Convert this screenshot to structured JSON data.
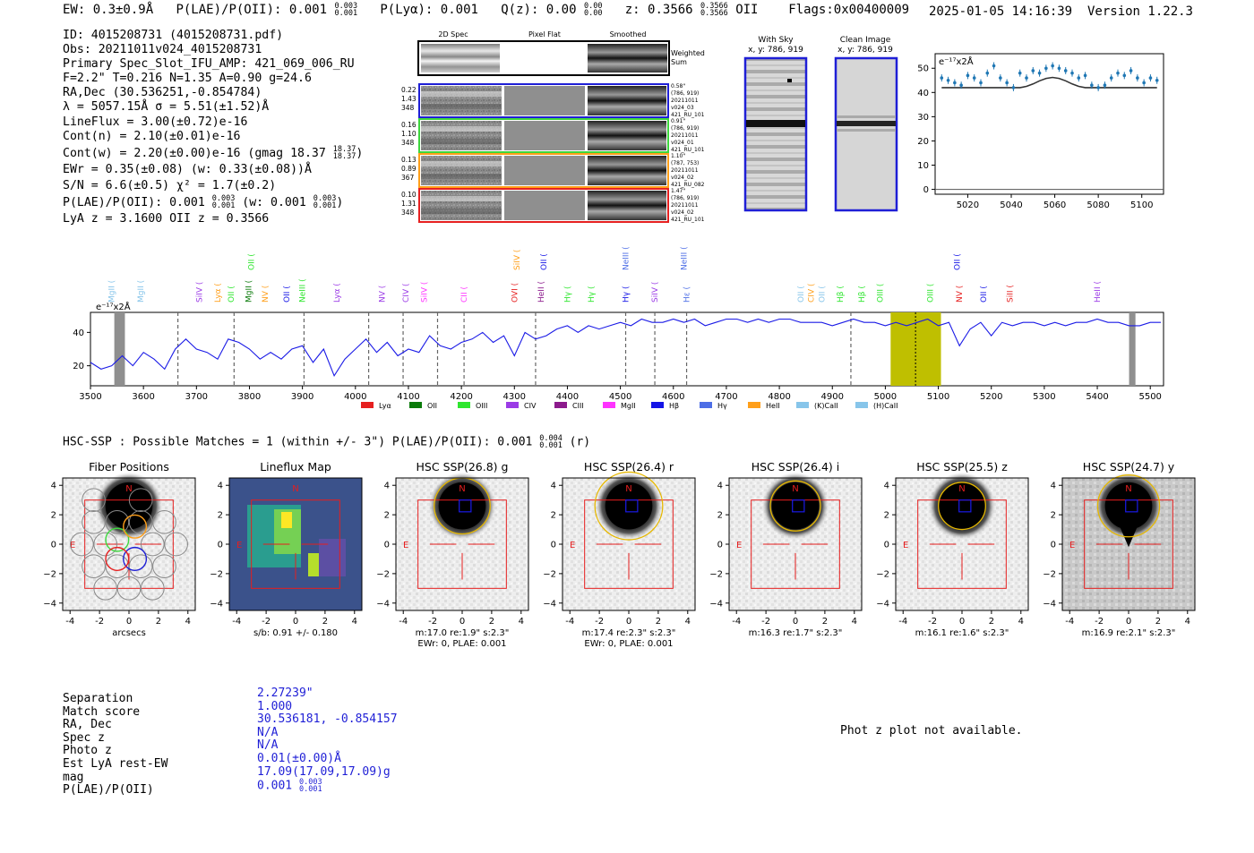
{
  "header": {
    "ew": "EW: 0.3±0.9Å",
    "plae_label": "P(LAE)/P(OII): 0.001",
    "plae_hi": "0.003",
    "plae_lo": "0.001",
    "plya": "P(Lyα): 0.001",
    "qz_label": "Q(z): 0.00",
    "qz_hi": "0.00",
    "qz_lo": "0.00",
    "z_label": "z: 0.3566",
    "z_hi": "0.3566",
    "z_lo": "0.3566",
    "z_line": "OII",
    "flags": "Flags:0x00400009",
    "datetime": "2025-01-05 14:16:39",
    "version": "Version 1.22.3"
  },
  "info": {
    "id": "ID: 4015208731 (4015208731.pdf)",
    "obs": "Obs: 20211011v024_4015208731",
    "primary": "Primary Spec_Slot_IFU_AMP: 421_069_006_RU",
    "fit": "F=2.2\"  T=0.216  N=1.35  A=0.90  g=24.6",
    "radec": "RA,Dec (30.536251,-0.854784)",
    "lambda": "λ = 5057.15Å  σ = 5.51(±1.52)Å",
    "lineflux": "LineFlux = 3.00(±0.72)e-16",
    "contn": "Cont(n) = 2.10(±0.01)e-16",
    "contw": "Cont(w) = 2.20(±0.00)e-16 (gmag 18.37",
    "contw_hi": "18.37",
    "contw_lo": "18.37",
    "ewr": "EWr = 0.35(±0.08) (w: 0.33(±0.08))Å",
    "sn": "S/N = 6.6(±0.5)  χ² = 1.7(±0.2)",
    "plae": "P(LAE)/P(OII): 0.001",
    "plae_hi": "0.003",
    "plae_lo": "0.001",
    "plae_w": "(w: 0.001",
    "plae_w_hi": "0.003",
    "plae_w_lo": "0.001",
    "lyaz": "LyA z = 3.1600  OII z = 0.3566"
  },
  "stamps": {
    "col_2d": "2D Spec",
    "col_flat": "Pixel Flat",
    "col_smooth": "Smoothed",
    "weighted": "Weighted",
    "sum": "Sum",
    "rows": [
      {
        "l1": "0.22",
        "l2": "1.43",
        "l3": "348",
        "r1": "0.58\"",
        "r2": "(786, 919)",
        "r3": "20211011",
        "r4": "v024_03",
        "r5": "421_RU_101",
        "color": "#1f1fd6"
      },
      {
        "l1": "0.16",
        "l2": "1.10",
        "l3": "348",
        "r1": "0.91\"",
        "r2": "(786, 919)",
        "r3": "20211011",
        "r4": "v024_01",
        "r5": "421_RU_101",
        "color": "#3dd63d"
      },
      {
        "l1": "0.13",
        "l2": "0.89",
        "l3": "367",
        "r1": "1.10\"",
        "r2": "(787, 753)",
        "r3": "20211011",
        "r4": "v024_02",
        "r5": "421_RU_082",
        "color": "#ff9f1a"
      },
      {
        "l1": "0.10",
        "l2": "1.31",
        "l3": "348",
        "r1": "1.47\"",
        "r2": "(786, 919)",
        "r3": "20211011",
        "r4": "v024_02",
        "r5": "421_RU_101",
        "color": "#e62020"
      }
    ],
    "with_sky": "With Sky",
    "with_sky_xy": "x, y: 786, 919",
    "clean": "Clean Image",
    "clean_xy": "x, y: 786, 919"
  },
  "zoom_chart": {
    "ylabel": "e⁻¹⁷x2Å",
    "xticks": [
      5020,
      5040,
      5060,
      5080,
      5100
    ],
    "yticks": [
      0,
      10,
      20,
      30,
      40,
      50
    ]
  },
  "spectrum": {
    "ylabel": "e⁻¹⁷x2Å",
    "xticks": [
      3500,
      3600,
      3700,
      3800,
      3900,
      4000,
      4100,
      4200,
      4300,
      4400,
      4500,
      4600,
      4700,
      4800,
      4900,
      5000,
      5100,
      5200,
      5300,
      5400,
      5500
    ],
    "yticks": [
      20,
      40
    ],
    "legend": [
      {
        "name": "Lyα",
        "color": "#e62020"
      },
      {
        "name": "OII",
        "color": "#0a7a0a"
      },
      {
        "name": "OIII",
        "color": "#2ee62e"
      },
      {
        "name": "CIV",
        "color": "#9b3be6"
      },
      {
        "name": "CIII",
        "color": "#8c1a8c"
      },
      {
        "name": "MgII",
        "color": "#ff33ff"
      },
      {
        "name": "Hβ",
        "color": "#1414e6"
      },
      {
        "name": "Hγ",
        "color": "#4d6ee6"
      },
      {
        "name": "HeII",
        "color": "#ff9f1a"
      },
      {
        "name": "(K)CaII",
        "color": "#87c5ea"
      },
      {
        "name": "(H)CaII",
        "color": "#87c5ea"
      }
    ],
    "lines": [
      {
        "label": "MgII",
        "x": 3540,
        "row": 2,
        "color": "#87c5ea"
      },
      {
        "label": "MgII",
        "x": 3595,
        "row": 2,
        "color": "#87c5ea"
      },
      {
        "label": "SiIV",
        "x": 3705,
        "row": 2,
        "color": "#9b3be6"
      },
      {
        "label": "Lyα",
        "x": 3740,
        "row": 2,
        "color": "#ff9f1a"
      },
      {
        "label": "OII",
        "x": 3765,
        "row": 2,
        "color": "#2ee62e"
      },
      {
        "label": "MgII",
        "x": 3798,
        "row": 2,
        "color": "#0a7a0a"
      },
      {
        "label": "OII",
        "x": 3803,
        "row": 0,
        "color": "#2ee62e"
      },
      {
        "label": "NV",
        "x": 3830,
        "row": 2,
        "color": "#ff9f1a"
      },
      {
        "label": "OII",
        "x": 3870,
        "row": 2,
        "color": "#1414e6"
      },
      {
        "label": "NeIII",
        "x": 3900,
        "row": 2,
        "color": "#2ee62e"
      },
      {
        "label": "Lyα",
        "x": 3965,
        "row": 2,
        "color": "#9b3be6"
      },
      {
        "label": "NV",
        "x": 4050,
        "row": 2,
        "color": "#9b3be6"
      },
      {
        "label": "CIV",
        "x": 4095,
        "row": 2,
        "color": "#9b3be6"
      },
      {
        "label": "SiIV",
        "x": 4130,
        "row": 2,
        "color": "#ff33ff"
      },
      {
        "label": "CII",
        "x": 4205,
        "row": 2,
        "color": "#ff33ff"
      },
      {
        "label": "OVI",
        "x": 4300,
        "row": 2,
        "color": "#e62020"
      },
      {
        "label": "SiIV",
        "x": 4305,
        "row": 0,
        "color": "#ff9f1a"
      },
      {
        "label": "HeII",
        "x": 4350,
        "row": 2,
        "color": "#8c1a8c"
      },
      {
        "label": "OII",
        "x": 4355,
        "row": 0,
        "color": "#1414e6"
      },
      {
        "label": "Hγ",
        "x": 4400,
        "row": 2,
        "color": "#2ee62e"
      },
      {
        "label": "Hγ",
        "x": 4445,
        "row": 2,
        "color": "#2ee62e"
      },
      {
        "label": "Hγ",
        "x": 4510,
        "row": 2,
        "color": "#1414e6"
      },
      {
        "label": "NeIII",
        "x": 4510,
        "row": 0,
        "color": "#4d6ee6"
      },
      {
        "label": "SiIV",
        "x": 4565,
        "row": 2,
        "color": "#9b3be6"
      },
      {
        "label": "Hε",
        "x": 4625,
        "row": 2,
        "color": "#4d6ee6"
      },
      {
        "label": "NeIII",
        "x": 4620,
        "row": 0,
        "color": "#4d6ee6"
      },
      {
        "label": "OII",
        "x": 4840,
        "row": 2,
        "color": "#87c5ea"
      },
      {
        "label": "CIV",
        "x": 4860,
        "row": 2,
        "color": "#ff9f1a"
      },
      {
        "label": "OII",
        "x": 4880,
        "row": 2,
        "color": "#87c5ea"
      },
      {
        "label": "Hβ",
        "x": 4915,
        "row": 2,
        "color": "#2ee62e"
      },
      {
        "label": "Hβ",
        "x": 4955,
        "row": 2,
        "color": "#2ee62e"
      },
      {
        "label": "OIII",
        "x": 4990,
        "row": 2,
        "color": "#2ee62e"
      },
      {
        "label": "OIII",
        "x": 5085,
        "row": 2,
        "color": "#2ee62e"
      },
      {
        "label": "NV",
        "x": 5140,
        "row": 2,
        "color": "#e62020"
      },
      {
        "label": "OII",
        "x": 5135,
        "row": 0,
        "color": "#1414e6"
      },
      {
        "label": "OII",
        "x": 5185,
        "row": 2,
        "color": "#1414e6"
      },
      {
        "label": "SiII",
        "x": 5235,
        "row": 2,
        "color": "#e62020"
      },
      {
        "label": "HeII",
        "x": 5400,
        "row": 2,
        "color": "#9b3be6"
      }
    ]
  },
  "hsc": {
    "title": "HSC-SSP : Possible Matches = 1 (within +/- 3\")  P(LAE)/P(OII): 0.001",
    "title_hi": "0.004",
    "title_lo": "0.001",
    "title_band": "(r)",
    "panels": [
      {
        "title": "Fiber Positions",
        "cap1": "arcsecs",
        "cap2": ""
      },
      {
        "title": "Lineflux Map",
        "cap1": "s/b: 0.91 +/- 0.180",
        "cap2": ""
      },
      {
        "title": "HSC SSP(26.8) g",
        "cap1": "m:17.0  re:1.9\"  s:2.3\"",
        "cap2": "EWr: 0, PLAE: 0.001"
      },
      {
        "title": "HSC SSP(26.4) r",
        "cap1": "m:17.4  re:2.3\"  s:2.3\"",
        "cap2": "EWr: 0, PLAE: 0.001"
      },
      {
        "title": "HSC SSP(26.4) i",
        "cap1": "m:16.3  re:1.7\"  s:2.3\"",
        "cap2": ""
      },
      {
        "title": "HSC SSP(25.5) z",
        "cap1": "m:16.1  re:1.6\"  s:2.3\"",
        "cap2": ""
      },
      {
        "title": "HSC SSP(24.7) y",
        "cap1": "m:16.9  re:2.1\"  s:2.3\"",
        "cap2": ""
      }
    ],
    "ticks": [
      "-4",
      "-2",
      "0",
      "2",
      "4"
    ],
    "yticks": [
      "4",
      "2",
      "0",
      "−2",
      "−4"
    ],
    "north": "N",
    "east": "E"
  },
  "match": {
    "labels": [
      "Separation",
      "Match score",
      "RA, Dec",
      "Spec z",
      "Photo z",
      "Est LyA rest-EW",
      "mag",
      "P(LAE)/P(OII)"
    ],
    "values": [
      "2.27239\"",
      "1.000",
      "30.536181, -0.854157",
      "N/A",
      "N/A",
      "0.01(±0.00)Å",
      "17.09(17.09,17.09)g",
      "0.001"
    ],
    "plae_hi": "0.003",
    "plae_lo": "0.001"
  },
  "photz": "Phot z plot not available.",
  "chart_data": [
    {
      "type": "line",
      "title": "",
      "xlabel": "",
      "ylabel": "e⁻¹⁷x2Å",
      "xlim": [
        3500,
        5525
      ],
      "ylim": [
        8,
        52
      ],
      "x": [
        3500,
        3520,
        3540,
        3560,
        3580,
        3600,
        3620,
        3640,
        3660,
        3680,
        3700,
        3720,
        3740,
        3760,
        3780,
        3800,
        3820,
        3840,
        3860,
        3880,
        3900,
        3920,
        3940,
        3960,
        3980,
        4000,
        4020,
        4040,
        4060,
        4080,
        4100,
        4120,
        4140,
        4160,
        4180,
        4200,
        4220,
        4240,
        4260,
        4280,
        4300,
        4320,
        4340,
        4360,
        4380,
        4400,
        4420,
        4440,
        4460,
        4480,
        4500,
        4520,
        4540,
        4560,
        4580,
        4600,
        4620,
        4640,
        4660,
        4680,
        4700,
        4720,
        4740,
        4760,
        4780,
        4800,
        4820,
        4840,
        4860,
        4880,
        4900,
        4920,
        4940,
        4960,
        4980,
        5000,
        5020,
        5040,
        5060,
        5080,
        5100,
        5120,
        5140,
        5160,
        5180,
        5200,
        5220,
        5240,
        5260,
        5280,
        5300,
        5320,
        5340,
        5360,
        5380,
        5400,
        5420,
        5440,
        5460,
        5480,
        5500,
        5520
      ],
      "series": [
        {
          "values": [
            22,
            18,
            20,
            26,
            20,
            28,
            24,
            18,
            30,
            36,
            30,
            28,
            24,
            36,
            34,
            30,
            24,
            28,
            24,
            30,
            32,
            22,
            30,
            14,
            24,
            30,
            36,
            28,
            34,
            26,
            30,
            28,
            38,
            32,
            30,
            34,
            36,
            40,
            34,
            38,
            26,
            40,
            36,
            38,
            42,
            44,
            40,
            44,
            42,
            44,
            46,
            44,
            48,
            46,
            46,
            48,
            46,
            48,
            44,
            46,
            48,
            48,
            46,
            48,
            46,
            48,
            48,
            46,
            46,
            46,
            44,
            46,
            48,
            46,
            46,
            44,
            46,
            44,
            46,
            48,
            44,
            46,
            32,
            42,
            46,
            38,
            46,
            44,
            46,
            46,
            44,
            46,
            44,
            46,
            46,
            48,
            46,
            46,
            44,
            44,
            46,
            46
          ]
        }
      ],
      "bands": [
        {
          "x0": 3545,
          "x1": 3565,
          "kind": "masked"
        },
        {
          "x0": 5010,
          "x1": 5105,
          "kind": "fit-window"
        },
        {
          "x0": 5460,
          "x1": 5472,
          "kind": "masked"
        }
      ],
      "vlines_dashed": [
        3665,
        3771,
        3903,
        4025,
        4090,
        4155,
        4205,
        4340,
        4510,
        4565,
        4625,
        4935
      ],
      "vline_dotted": 5057
    },
    {
      "type": "scatter",
      "title": "",
      "xlabel": "",
      "ylabel": "e⁻¹⁷x2Å",
      "xlim": [
        5005,
        5110
      ],
      "ylim": [
        -2,
        56
      ],
      "x": [
        5008,
        5011,
        5014,
        5017,
        5020,
        5023,
        5026,
        5029,
        5032,
        5035,
        5038,
        5041,
        5044,
        5047,
        5050,
        5053,
        5056,
        5059,
        5062,
        5065,
        5068,
        5071,
        5074,
        5077,
        5080,
        5083,
        5086,
        5089,
        5092,
        5095,
        5098,
        5101,
        5104,
        5107
      ],
      "series": [
        {
          "values": [
            46,
            45,
            44,
            43,
            47,
            46,
            44,
            48,
            51,
            46,
            44,
            42,
            48,
            46,
            49,
            48,
            50,
            51,
            50,
            49,
            48,
            46,
            47,
            43,
            42,
            43,
            46,
            48,
            47,
            49,
            46,
            44,
            46,
            45
          ]
        },
        {
          "kind": "fit",
          "values": [
            42,
            42,
            42,
            42,
            42,
            42,
            42,
            42,
            42,
            42,
            42,
            42,
            42,
            42.5,
            43.5,
            44.8,
            45.8,
            46.2,
            45.8,
            44.8,
            43.5,
            42.5,
            42,
            42,
            42,
            42,
            42,
            42,
            42,
            42,
            42,
            42,
            42,
            42
          ]
        }
      ],
      "hlines": [
        0
      ]
    }
  ]
}
